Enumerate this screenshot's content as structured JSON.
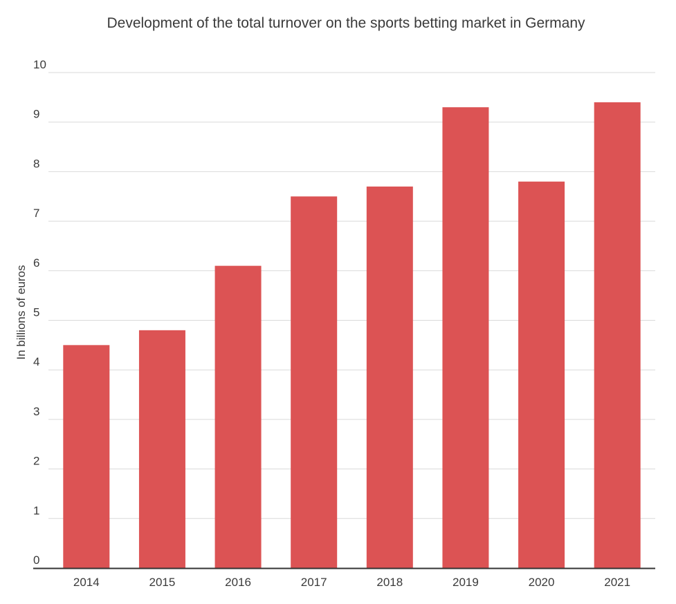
{
  "chart_data": {
    "type": "bar",
    "title": "Development of the total turnover on the sports betting market in Germany",
    "xlabel": "",
    "ylabel": "In billions of euros",
    "categories": [
      "2014",
      "2015",
      "2016",
      "2017",
      "2018",
      "2019",
      "2020",
      "2021"
    ],
    "values": [
      4.5,
      4.8,
      6.1,
      7.5,
      7.7,
      9.3,
      7.8,
      9.4
    ],
    "ylim": [
      0,
      10
    ],
    "yticks": [
      "0",
      "1",
      "2",
      "3",
      "4",
      "5",
      "6",
      "7",
      "8",
      "9",
      "10"
    ],
    "grid": true,
    "legend": "none",
    "bar_color": "#dc5354",
    "grid_color": "#d9d9d9",
    "axis_color": "#333333"
  }
}
